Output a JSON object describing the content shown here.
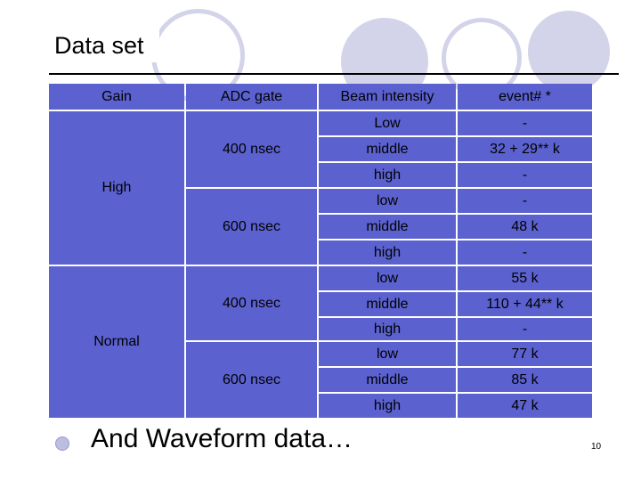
{
  "title": "Data set",
  "headers": [
    "Gain",
    "ADC gate",
    "Beam intensity",
    "event# *"
  ],
  "gains": [
    "High",
    "Normal"
  ],
  "gates": [
    "400 nsec",
    "600 nsec",
    "400 nsec",
    "600 nsec"
  ],
  "rows": [
    {
      "intensity": "Low",
      "event": "-"
    },
    {
      "intensity": "middle",
      "event": "32 + 29** k"
    },
    {
      "intensity": "high",
      "event": "-"
    },
    {
      "intensity": "low",
      "event": "-"
    },
    {
      "intensity": "middle",
      "event": "48 k"
    },
    {
      "intensity": "high",
      "event": "-"
    },
    {
      "intensity": "low",
      "event": "55 k"
    },
    {
      "intensity": "middle",
      "event": "110 + 44** k"
    },
    {
      "intensity": "high",
      "event": "-"
    },
    {
      "intensity": "low",
      "event": "77 k"
    },
    {
      "intensity": "middle",
      "event": "85 k"
    },
    {
      "intensity": "high",
      "event": "47 k"
    }
  ],
  "bottom_text": "And Waveform data…",
  "page_number": "10"
}
